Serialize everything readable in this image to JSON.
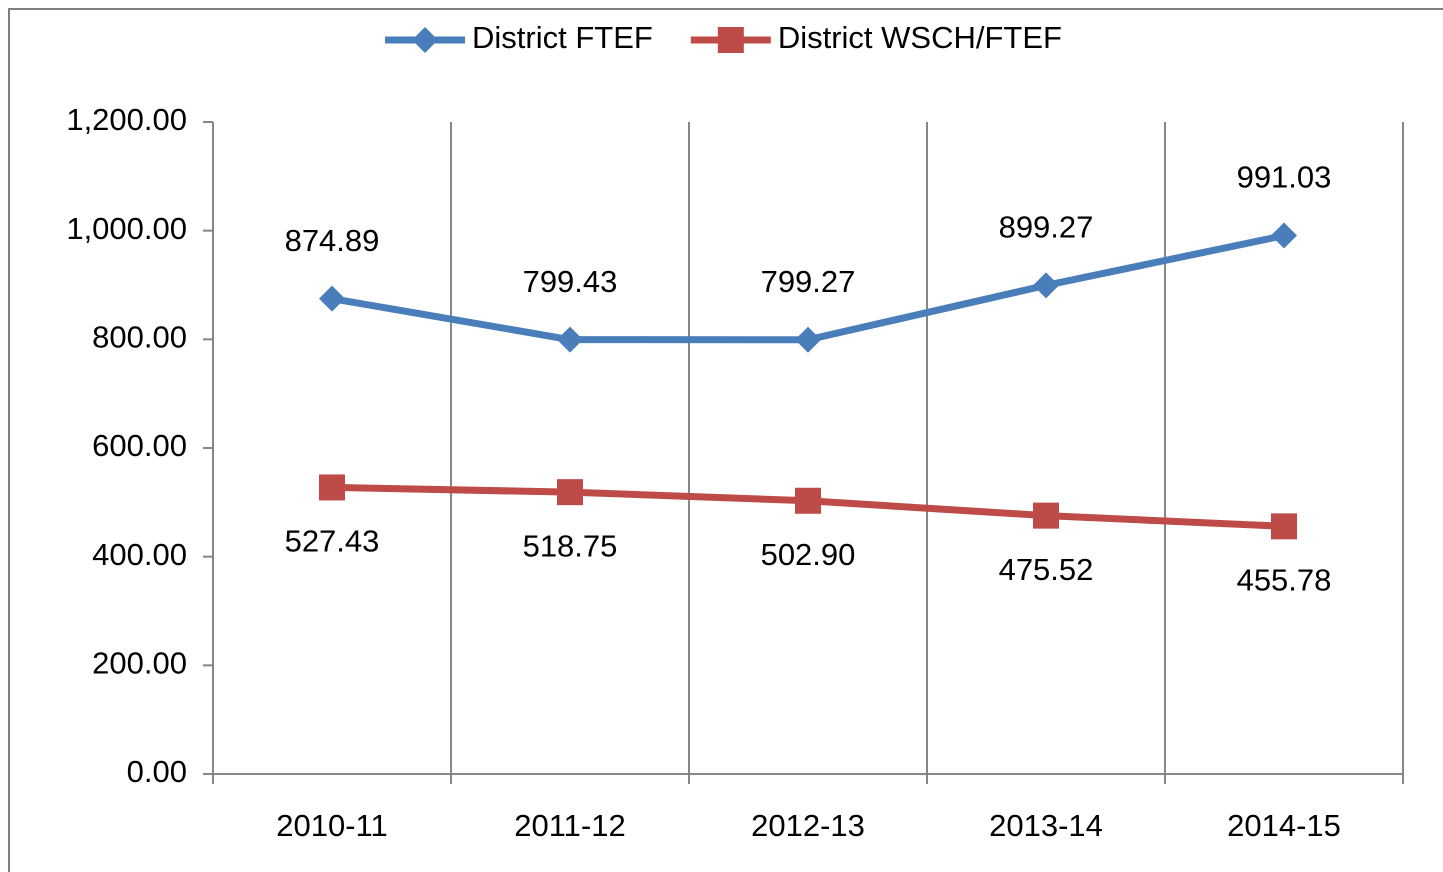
{
  "chart_data": {
    "type": "line",
    "categories": [
      "2010-11",
      "2011-12",
      "2012-13",
      "2013-14",
      "2014-15"
    ],
    "series": [
      {
        "name": "District FTEF",
        "color": "#4a7ebb",
        "marker": "diamond",
        "label_position": "above",
        "values": [
          874.89,
          799.43,
          799.27,
          899.27,
          991.03
        ],
        "value_labels": [
          "874.89",
          "799.43",
          "799.27",
          "899.27",
          "991.03"
        ]
      },
      {
        "name": "District WSCH/FTEF",
        "color": "#be4b48",
        "marker": "square",
        "label_position": "below",
        "values": [
          527.43,
          518.75,
          502.9,
          475.52,
          455.78
        ],
        "value_labels": [
          "527.43",
          "518.75",
          "502.90",
          "475.52",
          "455.78"
        ]
      }
    ],
    "ylim": [
      0,
      1200
    ],
    "yticks": [
      {
        "value": 0,
        "label": "0.00"
      },
      {
        "value": 200,
        "label": "200.00"
      },
      {
        "value": 400,
        "label": "400.00"
      },
      {
        "value": 600,
        "label": "600.00"
      },
      {
        "value": 800,
        "label": "800.00"
      },
      {
        "value": 1000,
        "label": "1,000.00"
      },
      {
        "value": 1200,
        "label": "1,200.00"
      }
    ],
    "grid": "vertical",
    "legend": "top"
  }
}
